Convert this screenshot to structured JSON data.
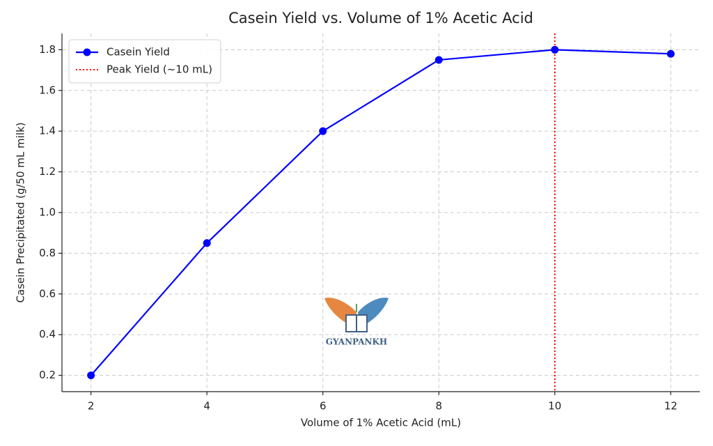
{
  "chart_data": {
    "type": "line",
    "title": "Casein Yield vs. Volume of 1% Acetic Acid",
    "x_label": "Volume of 1% Acetic Acid (mL)",
    "y_label": "Casein Precipitated (g/50 mL milk)",
    "x": [
      2,
      4,
      6,
      8,
      10,
      12
    ],
    "series": [
      {
        "name": "Casein Yield",
        "color": "#0000ff",
        "values": [
          0.2,
          0.85,
          1.4,
          1.75,
          1.8,
          1.78
        ]
      }
    ],
    "vlines": [
      {
        "x": 10,
        "name": "Peak Yield (~10 mL)",
        "color": "#ff0000"
      }
    ],
    "xlim": [
      1.5,
      12.5
    ],
    "xticks": [
      2,
      4,
      6,
      8,
      10,
      12
    ],
    "ylim": [
      0.12,
      1.88
    ],
    "yticks": [
      0.2,
      0.4,
      0.6,
      0.8,
      {
        "value": 1,
        "label": "1.0"
      },
      1.2,
      1.4,
      1.6,
      1.8
    ],
    "grid": true,
    "legend": "upper left",
    "watermark": "GYANPANKH"
  }
}
